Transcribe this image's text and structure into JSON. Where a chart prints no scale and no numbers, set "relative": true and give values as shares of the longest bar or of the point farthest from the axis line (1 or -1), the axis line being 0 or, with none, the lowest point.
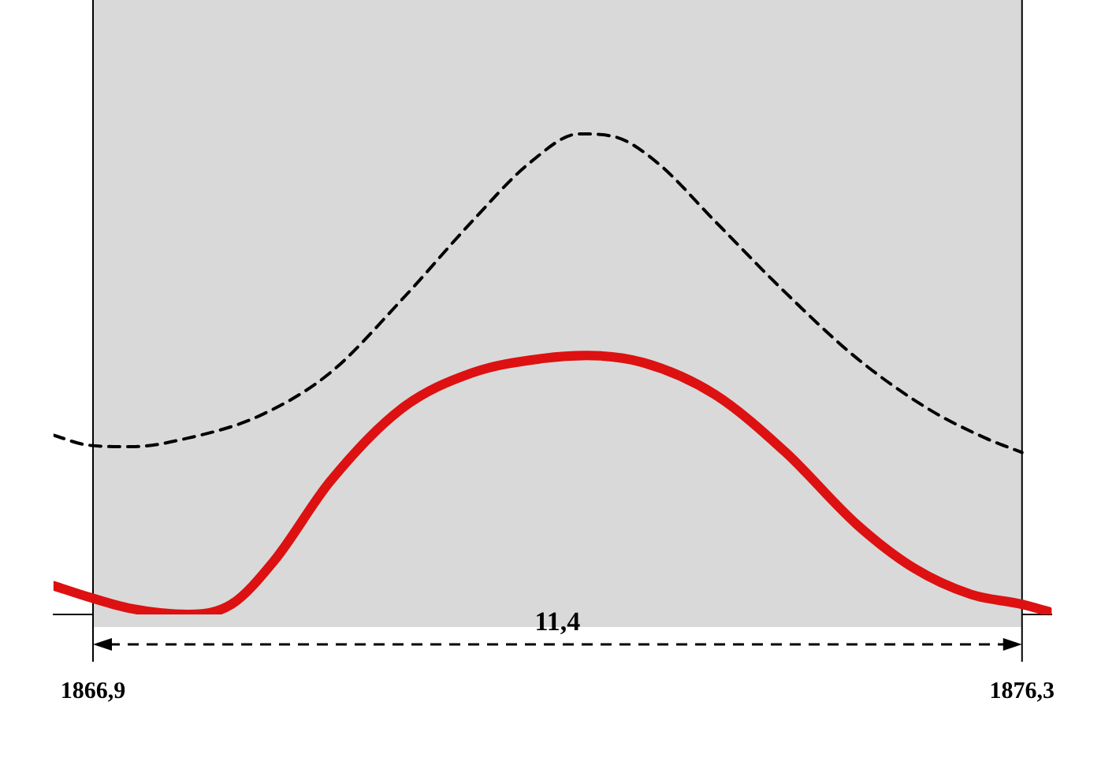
{
  "chart_data": {
    "type": "line",
    "relative": true,
    "xlim": [
      1866.5,
      1876.6
    ],
    "xticks": [
      {
        "value": 1866.9,
        "label": "1866,9"
      },
      {
        "value": 1876.3,
        "label": "1876,3"
      }
    ],
    "grid": false,
    "legend": false,
    "marker": "none",
    "series": [
      {
        "color": "#000000",
        "line_style": "dashed",
        "x": [
          1866.5,
          1866.86,
          1867.29,
          1867.86,
          1868.58,
          1869.3,
          1870.02,
          1870.74,
          1871.32,
          1871.82,
          1872.18,
          1872.61,
          1873.19,
          1873.91,
          1874.63,
          1875.35,
          1875.93,
          1876.3
        ],
        "values": [
          0.373,
          0.352,
          0.349,
          0.367,
          0.413,
          0.503,
          0.654,
          0.819,
          0.94,
          1.0,
          0.994,
          0.94,
          0.819,
          0.669,
          0.533,
          0.428,
          0.367,
          0.337
        ]
      },
      {
        "color": "#dd1111",
        "line_style": "solid",
        "x": [
          1866.5,
          1866.86,
          1867.29,
          1867.86,
          1868.3,
          1868.73,
          1869.3,
          1870.02,
          1870.74,
          1871.46,
          1871.89,
          1872.47,
          1873.19,
          1873.91,
          1874.63,
          1875.21,
          1875.78,
          1876.3,
          1876.57
        ],
        "values": [
          0.06,
          0.036,
          0.012,
          0,
          0.021,
          0.111,
          0.277,
          0.428,
          0.503,
          0.533,
          0.539,
          0.524,
          0.458,
          0.337,
          0.187,
          0.096,
          0.042,
          0.021,
          0.006
        ]
      }
    ],
    "ref_lines": [
      {
        "axis": "x",
        "value": 1866.9
      },
      {
        "axis": "x",
        "value": 1876.3
      }
    ],
    "annotations": [
      "11,4"
    ]
  }
}
